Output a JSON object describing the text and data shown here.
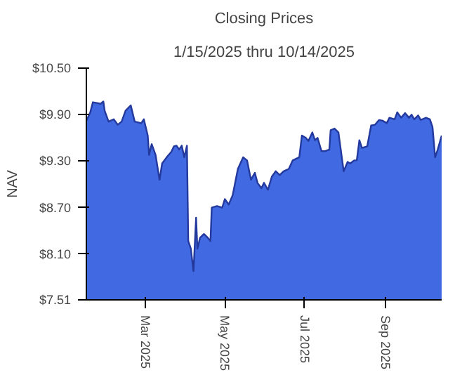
{
  "chart_data": {
    "type": "area",
    "title": "Closing Prices",
    "subtitle": "1/15/2025 thru 10/14/2025",
    "ylabel": "NAV",
    "x": [
      "2025-01-15",
      "2025-01-18",
      "2025-01-20",
      "2025-01-26",
      "2025-01-28",
      "2025-01-29",
      "2025-02-01",
      "2025-02-05",
      "2025-02-08",
      "2025-02-11",
      "2025-02-14",
      "2025-02-18",
      "2025-02-21",
      "2025-02-26",
      "2025-02-28",
      "2025-03-03",
      "2025-03-04",
      "2025-03-06",
      "2025-03-09",
      "2025-03-12",
      "2025-03-14",
      "2025-03-18",
      "2025-03-21",
      "2025-03-23",
      "2025-03-25",
      "2025-03-27",
      "2025-03-29",
      "2025-03-31",
      "2025-04-02",
      "2025-04-03",
      "2025-04-05",
      "2025-04-07",
      "2025-04-09",
      "2025-04-10",
      "2025-04-12",
      "2025-04-15",
      "2025-04-18",
      "2025-04-20",
      "2025-04-21",
      "2025-04-25",
      "2025-04-29",
      "2025-05-01",
      "2025-05-04",
      "2025-05-07",
      "2025-05-11",
      "2025-05-15",
      "2025-05-18",
      "2025-05-21",
      "2025-05-24",
      "2025-05-26",
      "2025-05-29",
      "2025-05-31",
      "2025-06-03",
      "2025-06-06",
      "2025-06-09",
      "2025-06-12",
      "2025-06-15",
      "2025-06-19",
      "2025-06-22",
      "2025-06-27",
      "2025-06-29",
      "2025-07-02",
      "2025-07-04",
      "2025-07-07",
      "2025-07-09",
      "2025-07-11",
      "2025-07-14",
      "2025-07-17",
      "2025-07-20",
      "2025-07-21",
      "2025-07-24",
      "2025-07-27",
      "2025-07-31",
      "2025-08-03",
      "2025-08-05",
      "2025-08-08",
      "2025-08-10",
      "2025-08-12",
      "2025-08-14",
      "2025-08-18",
      "2025-08-21",
      "2025-08-24",
      "2025-08-27",
      "2025-08-30",
      "2025-09-02",
      "2025-09-04",
      "2025-09-08",
      "2025-09-10",
      "2025-09-13",
      "2025-09-16",
      "2025-09-19",
      "2025-09-21",
      "2025-09-23",
      "2025-09-26",
      "2025-09-28",
      "2025-10-02",
      "2025-10-05",
      "2025-10-07",
      "2025-10-09",
      "2025-10-11",
      "2025-10-14"
    ],
    "series": [
      {
        "color": "#4169e1",
        "values": [
          9.82,
          9.93,
          10.06,
          10.04,
          10.07,
          9.95,
          9.81,
          9.84,
          9.77,
          9.81,
          9.95,
          10.02,
          9.81,
          9.79,
          9.84,
          9.63,
          9.38,
          9.52,
          9.38,
          9.06,
          9.27,
          9.36,
          9.42,
          9.49,
          9.5,
          9.45,
          9.5,
          9.35,
          9.5,
          8.27,
          8.17,
          7.88,
          8.57,
          8.17,
          8.31,
          8.36,
          8.31,
          8.27,
          8.7,
          8.72,
          8.7,
          8.81,
          8.74,
          8.86,
          9.2,
          9.35,
          9.31,
          9.06,
          9.15,
          9.02,
          8.95,
          9.02,
          8.93,
          9.1,
          9.17,
          9.12,
          9.17,
          9.2,
          9.31,
          9.35,
          9.63,
          9.6,
          9.56,
          9.67,
          9.57,
          9.6,
          9.43,
          9.43,
          9.45,
          9.7,
          9.72,
          9.67,
          9.17,
          9.29,
          9.27,
          9.31,
          9.31,
          9.57,
          9.47,
          9.49,
          9.76,
          9.77,
          9.83,
          9.82,
          9.79,
          9.86,
          9.84,
          9.93,
          9.86,
          9.92,
          9.86,
          9.9,
          9.84,
          9.89,
          9.83,
          9.86,
          9.84,
          9.74,
          9.35,
          9.45,
          9.63
        ]
      }
    ],
    "xlim": [
      "2025-01-15",
      "2025-10-14"
    ],
    "xticks": [
      {
        "value": "2025-03-01",
        "label": "Mar 2025"
      },
      {
        "value": "2025-05-01",
        "label": "May 2025"
      },
      {
        "value": "2025-07-01",
        "label": "Jul 2025"
      },
      {
        "value": "2025-09-01",
        "label": "Sep 2025"
      }
    ],
    "ylim": [
      7.51,
      10.5
    ],
    "yticks": [
      {
        "value": 7.51,
        "label": "$7.51"
      },
      {
        "value": 8.1,
        "label": "$8.10"
      },
      {
        "value": 8.7,
        "label": "$8.70"
      },
      {
        "value": 9.3,
        "label": "$9.30"
      },
      {
        "value": 9.9,
        "label": "$9.90"
      },
      {
        "value": 10.5,
        "label": "$10.50"
      }
    ]
  }
}
